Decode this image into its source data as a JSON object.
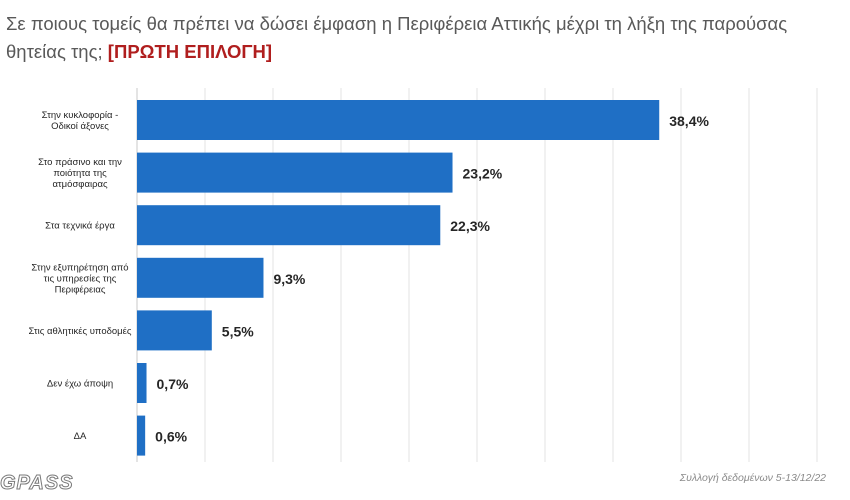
{
  "title": {
    "main": "Σε ποιους τομείς θα πρέπει να δώσει έμφαση η Περιφέρεια Αττικής μέχρι τη λήξη της παρούσας θητείας της;",
    "highlight": "[ΠΡΩΤΗ ΕΠΙΛΟΓΗ]"
  },
  "footer_note": "Συλλογή δεδομένων 5-13/12/22",
  "logo_text": "GPASS",
  "colors": {
    "bar": "#1f6fc5",
    "grid": "#e3e3e3",
    "highlight": "#b01e1e"
  },
  "chart_data": {
    "type": "bar",
    "orientation": "horizontal",
    "categories": [
      [
        "Στην κυκλοφορία -",
        "Οδικοί άξονες"
      ],
      [
        "Στο πράσινο και την",
        "ποιότητα της",
        "ατμόσφαιρας"
      ],
      [
        "Στα τεχνικά έργα"
      ],
      [
        "Στην εξυπηρέτηση από",
        "τις υπηρεσίες της",
        "Περιφέρειας"
      ],
      [
        "Στις αθλητικές υποδομές"
      ],
      [
        "Δεν έχω άποψη"
      ],
      [
        "ΔΑ"
      ]
    ],
    "values": [
      38.4,
      23.2,
      22.3,
      9.3,
      5.5,
      0.7,
      0.6
    ],
    "data_labels": [
      "38,4%",
      "23,2%",
      "22,3%",
      "9,3%",
      "5,5%",
      "0,7%",
      "0,6%"
    ],
    "xlim": [
      0,
      50
    ],
    "grid": true,
    "legend": "none"
  }
}
